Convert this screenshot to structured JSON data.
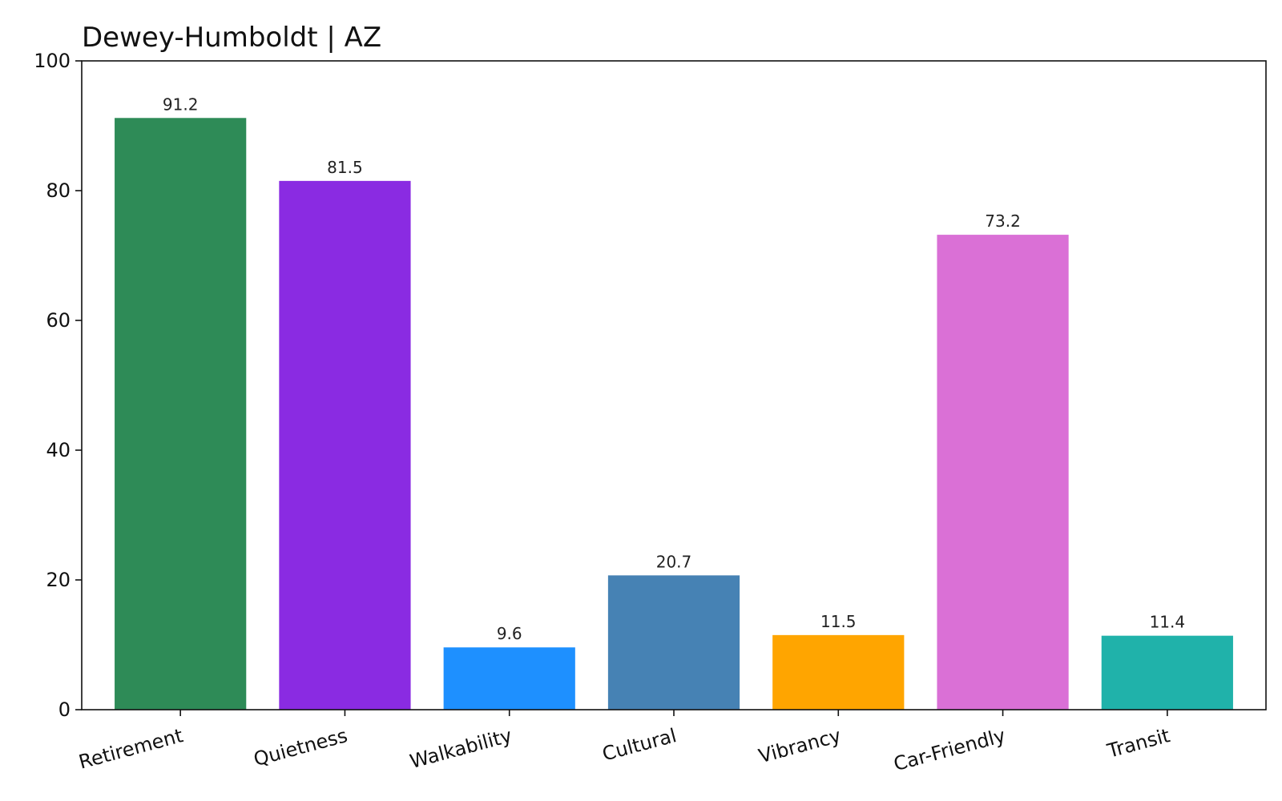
{
  "chart_data": {
    "type": "bar",
    "title": "Dewey-Humboldt | AZ",
    "xlabel": "",
    "ylabel": "",
    "categories": [
      "Retirement",
      "Quietness",
      "Walkability",
      "Cultural",
      "Vibrancy",
      "Car-Friendly",
      "Transit"
    ],
    "values": [
      91.2,
      81.5,
      9.6,
      20.7,
      11.5,
      73.2,
      11.4
    ],
    "value_labels": [
      "91.2",
      "81.5",
      "9.6",
      "20.7",
      "11.5",
      "73.2",
      "11.4"
    ],
    "colors": [
      "#2e8b57",
      "#8a2be2",
      "#1e90ff",
      "#4682b4",
      "#ffa500",
      "#da70d6",
      "#20b2aa"
    ],
    "ylim": [
      0,
      100
    ],
    "yticks": [
      0,
      20,
      40,
      60,
      80,
      100
    ],
    "ytick_labels": [
      "0",
      "20",
      "40",
      "60",
      "80",
      "100"
    ],
    "grid": false,
    "legend": "none"
  }
}
